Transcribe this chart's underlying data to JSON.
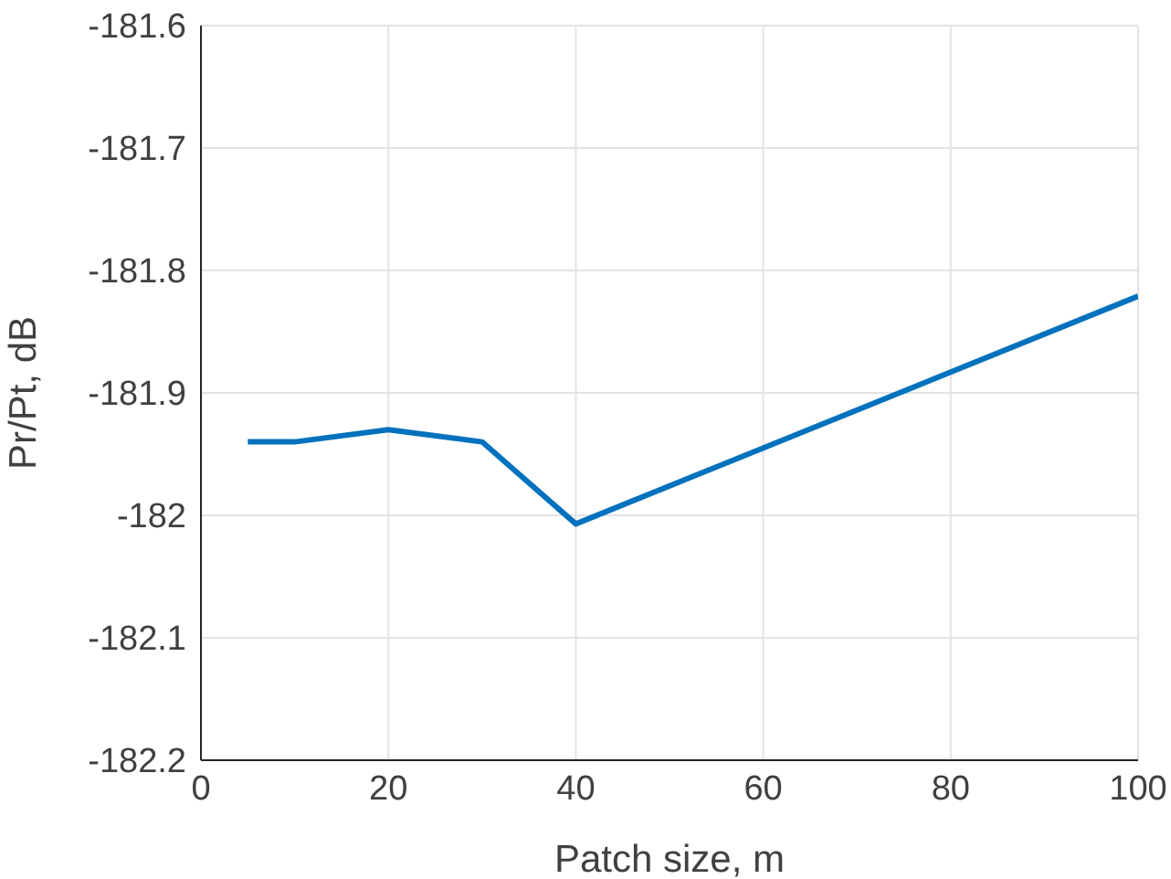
{
  "chart_data": {
    "type": "line",
    "xlabel": "Patch size, m",
    "ylabel": "Pr/Pt, dB",
    "x": [
      5,
      10,
      20,
      30,
      40,
      100
    ],
    "series": [
      {
        "color": "#0072bd",
        "values": [
          -181.94,
          -181.94,
          -181.93,
          -181.94,
          -182.007,
          -181.821
        ]
      }
    ],
    "xlim": [
      0,
      100
    ],
    "xticks": [
      0,
      20,
      40,
      60,
      80,
      100
    ],
    "ylim": [
      -182.2,
      -181.6
    ],
    "yticks": [
      -182.2,
      -182.1,
      -182,
      -181.9,
      -181.8,
      -181.7,
      -181.6
    ],
    "grid": true,
    "marker": "none",
    "line_style": "solid"
  }
}
